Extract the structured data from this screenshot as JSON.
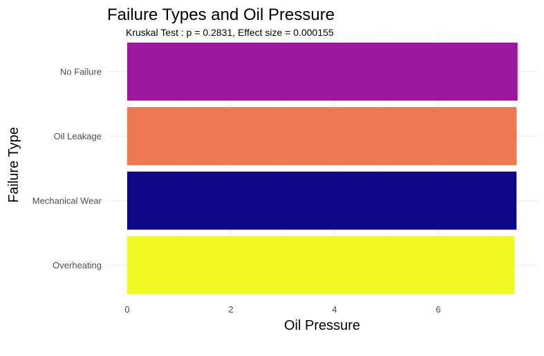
{
  "chart_data": {
    "type": "bar",
    "orientation": "horizontal",
    "title": "Failure Types and Oil Pressure",
    "subtitle": "Kruskal Test : p = 0.2831, Effect size = 0.000155",
    "xlabel": "Oil Pressure",
    "ylabel": "Failure Type",
    "categories": [
      "No Failure",
      "Oil Leakage",
      "Mechanical Wear",
      "Overheating"
    ],
    "values": [
      7.53,
      7.51,
      7.51,
      7.47
    ],
    "colors": [
      "#9c179e",
      "#ed7953",
      "#0d0887",
      "#f0f921"
    ],
    "xlim": [
      0,
      7.9
    ],
    "xticks": [
      0,
      2,
      4,
      6
    ],
    "xtick_labels": [
      "0",
      "2",
      "4",
      "6"
    ],
    "grid": true,
    "legend": "none"
  }
}
